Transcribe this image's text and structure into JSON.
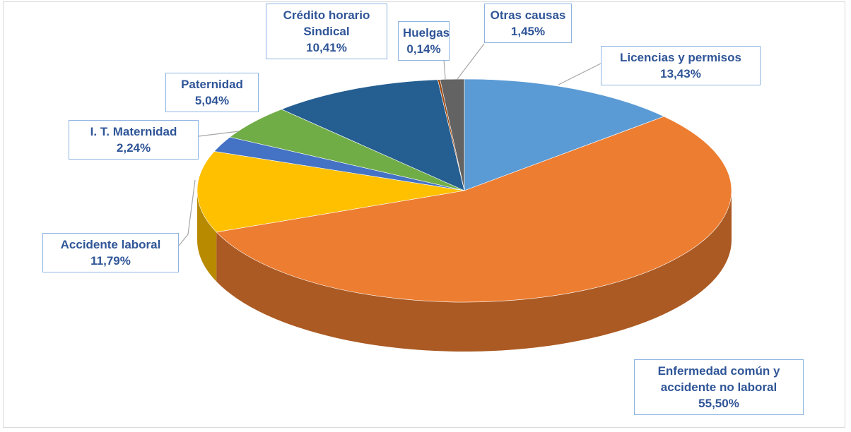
{
  "chart_data": {
    "type": "pie",
    "style": "3d",
    "categories": [
      "Licencias y permisos",
      "Enfermedad común y accidente no laboral",
      "Accidente laboral",
      "I. T. Maternidad",
      "Paternidad",
      "Crédito horario Sindical",
      "Huelgas",
      "Otras causas"
    ],
    "values": [
      13.43,
      55.5,
      11.79,
      2.24,
      5.04,
      10.41,
      0.14,
      1.45
    ],
    "value_labels": [
      "13,43%",
      "55,50%",
      "11,79%",
      "2,24%",
      "5,04%",
      "10,41%",
      "0,14%",
      "1,45%"
    ],
    "colors": [
      "#5b9bd5",
      "#ed7d31",
      "#ffc000",
      "#4472c4",
      "#70ad47",
      "#255e91",
      "#9e480e",
      "#636363"
    ]
  }
}
